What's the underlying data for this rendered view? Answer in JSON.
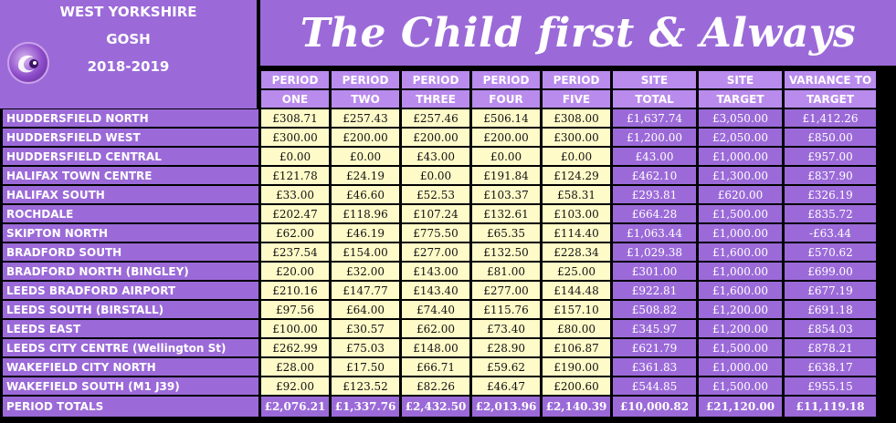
{
  "brand": {
    "line1": "WEST YORKSHIRE",
    "line2": "GOSH",
    "line3": "2018-2019"
  },
  "banner": {
    "title": "The Child first & Always"
  },
  "columns": [
    {
      "l1": "PERIOD",
      "l2": "ONE"
    },
    {
      "l1": "PERIOD",
      "l2": "TWO"
    },
    {
      "l1": "PERIOD",
      "l2": "THREE"
    },
    {
      "l1": "PERIOD",
      "l2": "FOUR"
    },
    {
      "l1": "PERIOD",
      "l2": "FIVE"
    },
    {
      "l1": "SITE",
      "l2": "TOTAL"
    },
    {
      "l1": "SITE",
      "l2": "TARGET"
    },
    {
      "l1": "VARIANCE TO",
      "l2": "TARGET"
    }
  ],
  "rows": [
    {
      "name": "HUDDERSFIELD NORTH",
      "v": [
        "£308.71",
        "£257.43",
        "£257.46",
        "£506.14",
        "£308.00",
        "£1,637.74",
        "£3,050.00",
        "£1,412.26"
      ]
    },
    {
      "name": "HUDDERSFIELD WEST",
      "v": [
        "£300.00",
        "£200.00",
        "£200.00",
        "£200.00",
        "£300.00",
        "£1,200.00",
        "£2,050.00",
        "£850.00"
      ]
    },
    {
      "name": "HUDDERSFIELD CENTRAL",
      "v": [
        "£0.00",
        "£0.00",
        "£43.00",
        "£0.00",
        "£0.00",
        "£43.00",
        "£1,000.00",
        "£957.00"
      ]
    },
    {
      "name": "HALIFAX TOWN CENTRE",
      "v": [
        "£121.78",
        "£24.19",
        "£0.00",
        "£191.84",
        "£124.29",
        "£462.10",
        "£1,300.00",
        "£837.90"
      ]
    },
    {
      "name": "HALIFAX SOUTH",
      "v": [
        "£33.00",
        "£46.60",
        "£52.53",
        "£103.37",
        "£58.31",
        "£293.81",
        "£620.00",
        "£326.19"
      ]
    },
    {
      "name": "ROCHDALE",
      "v": [
        "£202.47",
        "£118.96",
        "£107.24",
        "£132.61",
        "£103.00",
        "£664.28",
        "£1,500.00",
        "£835.72"
      ]
    },
    {
      "name": "SKIPTON NORTH",
      "v": [
        "£62.00",
        "£46.19",
        "£775.50",
        "£65.35",
        "£114.40",
        "£1,063.44",
        "£1,000.00",
        "-£63.44"
      ]
    },
    {
      "name": "BRADFORD SOUTH",
      "v": [
        "£237.54",
        "£154.00",
        "£277.00",
        "£132.50",
        "£228.34",
        "£1,029.38",
        "£1,600.00",
        "£570.62"
      ]
    },
    {
      "name": "BRADFORD NORTH (BINGLEY)",
      "v": [
        "£20.00",
        "£32.00",
        "£143.00",
        "£81.00",
        "£25.00",
        "£301.00",
        "£1,000.00",
        "£699.00"
      ]
    },
    {
      "name": "LEEDS BRADFORD AIRPORT",
      "v": [
        "£210.16",
        "£147.77",
        "£143.40",
        "£277.00",
        "£144.48",
        "£922.81",
        "£1,600.00",
        "£677.19"
      ]
    },
    {
      "name": "LEEDS SOUTH (BIRSTALL)",
      "v": [
        "£97.56",
        "£64.00",
        "£74.40",
        "£115.76",
        "£157.10",
        "£508.82",
        "£1,200.00",
        "£691.18"
      ]
    },
    {
      "name": "LEEDS EAST",
      "v": [
        "£100.00",
        "£30.57",
        "£62.00",
        "£73.40",
        "£80.00",
        "£345.97",
        "£1,200.00",
        "£854.03"
      ]
    },
    {
      "name": "LEEDS CITY CENTRE (Wellington St)",
      "v": [
        "£262.99",
        "£75.03",
        "£148.00",
        "£28.90",
        "£106.87",
        "£621.79",
        "£1,500.00",
        "£878.21"
      ]
    },
    {
      "name": "WAKEFIELD CITY NORTH",
      "v": [
        "£28.00",
        "£17.50",
        "£66.71",
        "£59.62",
        "£190.00",
        "£361.83",
        "£1,000.00",
        "£638.17"
      ]
    },
    {
      "name": "WAKEFIELD SOUTH (M1 J39)",
      "v": [
        "£92.00",
        "£123.52",
        "£82.26",
        "£46.47",
        "£200.60",
        "£544.85",
        "£1,500.00",
        "£955.15"
      ]
    }
  ],
  "totals": {
    "label": "PERIOD TOTALS",
    "v": [
      "£2,076.21",
      "£1,337.76",
      "£2,432.50",
      "£2,013.96",
      "£2,140.39",
      "£10,000.82",
      "£21,120.00",
      "£11,119.18"
    ]
  },
  "colors": {
    "purple": "#9b6ad8",
    "header_purple": "#b98bed",
    "cell_yellow": "#fffbc9",
    "border": "#000000"
  },
  "icons": {
    "logo": "gosh-logo-icon"
  }
}
